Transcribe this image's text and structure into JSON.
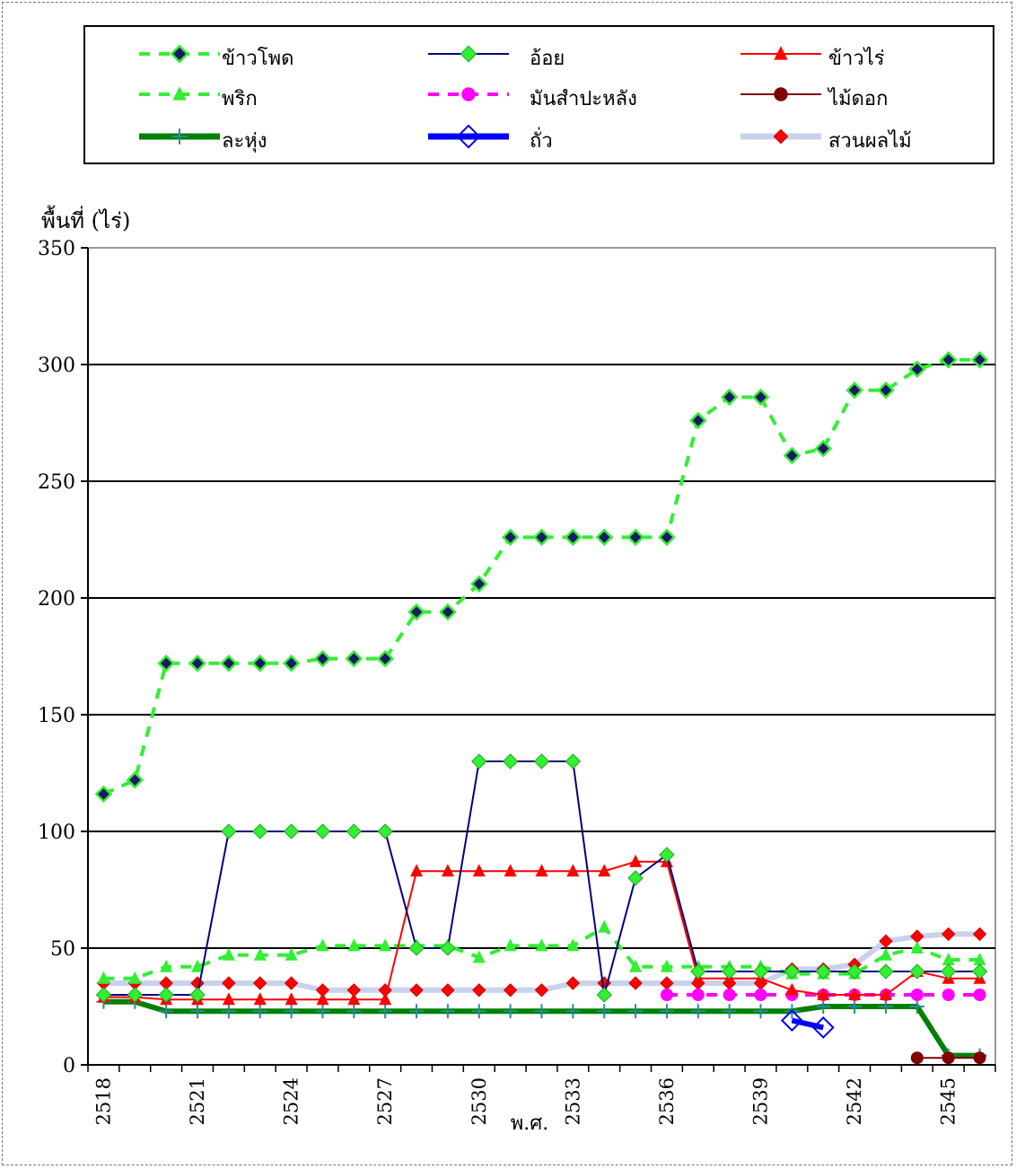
{
  "chart_data": {
    "type": "line",
    "title": "",
    "ylabel": "พื้นที่ (ไร่)",
    "xlabel": "พ.ศ.",
    "ylim": [
      0,
      350
    ],
    "yticks": [
      0,
      50,
      100,
      150,
      200,
      250,
      300,
      350
    ],
    "xlim": [
      2517.5,
      2546.5
    ],
    "xticks": [
      2518,
      2521,
      2524,
      2527,
      2530,
      2533,
      2536,
      2539,
      2542,
      2545
    ],
    "grid": "horizontal",
    "legend_position": "top",
    "series": [
      {
        "name": "ข้าวโพด",
        "color": "#33ee33",
        "line": "dashed",
        "marker": "diamond-dark",
        "x": [
          2518,
          2519,
          2520,
          2521,
          2522,
          2523,
          2524,
          2525,
          2526,
          2527,
          2528,
          2529,
          2530,
          2531,
          2532,
          2533,
          2534,
          2535,
          2536,
          2537,
          2538,
          2539,
          2540,
          2541,
          2542,
          2543,
          2544,
          2545,
          2546
        ],
        "y": [
          116,
          122,
          172,
          172,
          172,
          172,
          172,
          174,
          174,
          174,
          194,
          194,
          206,
          226,
          226,
          226,
          226,
          226,
          226,
          276,
          286,
          286,
          261,
          264,
          289,
          289,
          298,
          302,
          302
        ]
      },
      {
        "name": "อ้อย",
        "color": "#000080",
        "line": "solid",
        "marker": "diamond-green",
        "x": [
          2518,
          2519,
          2520,
          2521,
          2522,
          2523,
          2524,
          2525,
          2526,
          2527,
          2528,
          2529,
          2530,
          2531,
          2532,
          2533,
          2534,
          2535,
          2536,
          2537,
          2538,
          2539,
          2540,
          2541,
          2542,
          2543,
          2544,
          2545,
          2546
        ],
        "y": [
          30,
          30,
          30,
          30,
          100,
          100,
          100,
          100,
          100,
          100,
          50,
          50,
          130,
          130,
          130,
          130,
          30,
          80,
          90,
          40,
          40,
          40,
          40,
          40,
          40,
          40,
          40,
          40,
          40
        ]
      },
      {
        "name": "ข้าวไร่",
        "color": "#ff0000",
        "line": "solid",
        "marker": "triangle",
        "x": [
          2518,
          2519,
          2520,
          2521,
          2522,
          2523,
          2524,
          2525,
          2526,
          2527,
          2528,
          2529,
          2530,
          2531,
          2532,
          2533,
          2534,
          2535,
          2536,
          2537,
          2538,
          2539,
          2540,
          2541,
          2542,
          2543,
          2544,
          2545,
          2546
        ],
        "y": [
          29,
          29,
          28,
          28,
          28,
          28,
          28,
          28,
          28,
          28,
          83,
          83,
          83,
          83,
          83,
          83,
          83,
          87,
          87,
          37,
          37,
          37,
          32,
          30,
          30,
          30,
          40,
          37,
          37
        ]
      },
      {
        "name": "พริก",
        "color": "#33ee33",
        "line": "dashed",
        "marker": "triangle",
        "x": [
          2518,
          2519,
          2520,
          2521,
          2522,
          2523,
          2524,
          2525,
          2526,
          2527,
          2528,
          2529,
          2530,
          2531,
          2532,
          2533,
          2534,
          2535,
          2536,
          2537,
          2538,
          2539,
          2540,
          2541,
          2542,
          2543,
          2544,
          2545,
          2546
        ],
        "y": [
          37,
          37,
          42,
          42,
          47,
          47,
          47,
          51,
          51,
          51,
          51,
          51,
          46,
          51,
          51,
          51,
          59,
          42,
          42,
          42,
          42,
          42,
          39,
          39,
          39,
          47,
          50,
          45,
          45
        ]
      },
      {
        "name": "มันสำปะหลัง",
        "color": "#ff00ff",
        "line": "dashed",
        "marker": "circle",
        "x": [
          2536,
          2537,
          2538,
          2539,
          2540,
          2541,
          2542,
          2543,
          2544,
          2545,
          2546
        ],
        "y": [
          30,
          30,
          30,
          30,
          30,
          30,
          30,
          30,
          30,
          30,
          30
        ]
      },
      {
        "name": "ไม้ดอก",
        "color": "#800000",
        "line": "solid",
        "marker": "circle",
        "x": [
          2544,
          2545,
          2546
        ],
        "y": [
          3,
          3,
          3
        ]
      },
      {
        "name": "ละหุ่ง",
        "color": "#008000",
        "line": "thick",
        "marker": "plus",
        "x": [
          2518,
          2519,
          2520,
          2521,
          2522,
          2523,
          2524,
          2525,
          2526,
          2527,
          2528,
          2529,
          2530,
          2531,
          2532,
          2533,
          2534,
          2535,
          2536,
          2537,
          2538,
          2539,
          2540,
          2541,
          2542,
          2543,
          2544,
          2545,
          2546
        ],
        "y": [
          27,
          27,
          23,
          23,
          23,
          23,
          23,
          23,
          23,
          23,
          23,
          23,
          23,
          23,
          23,
          23,
          23,
          23,
          23,
          23,
          23,
          23,
          23,
          25,
          25,
          25,
          25,
          4,
          4
        ]
      },
      {
        "name": "ถั่ว",
        "color": "#0000ff",
        "line": "thick",
        "marker": "diamond-open",
        "x": [
          2540,
          2541
        ],
        "y": [
          19,
          16
        ]
      },
      {
        "name": "สวนผลไม้",
        "color": "#c8d2ec",
        "line": "thick",
        "marker": "diamond-red",
        "x": [
          2518,
          2519,
          2520,
          2521,
          2522,
          2523,
          2524,
          2525,
          2526,
          2527,
          2528,
          2529,
          2530,
          2531,
          2532,
          2533,
          2534,
          2535,
          2536,
          2537,
          2538,
          2539,
          2540,
          2541,
          2542,
          2543,
          2544,
          2545,
          2546
        ],
        "y": [
          35,
          35,
          35,
          35,
          35,
          35,
          35,
          32,
          32,
          32,
          32,
          32,
          32,
          32,
          32,
          35,
          35,
          35,
          35,
          35,
          35,
          35,
          41,
          41,
          43,
          53,
          55,
          56,
          56
        ]
      }
    ]
  }
}
